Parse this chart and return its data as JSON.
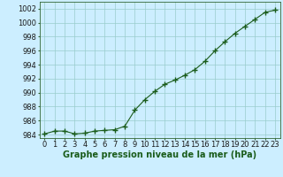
{
  "x": [
    0,
    1,
    2,
    3,
    4,
    5,
    6,
    7,
    8,
    9,
    10,
    11,
    12,
    13,
    14,
    15,
    16,
    17,
    18,
    19,
    20,
    21,
    22,
    23
  ],
  "y": [
    984.1,
    984.5,
    984.5,
    984.1,
    984.2,
    984.5,
    984.6,
    984.7,
    985.2,
    987.5,
    989.0,
    990.2,
    991.2,
    991.8,
    992.5,
    993.3,
    994.5,
    996.0,
    997.3,
    998.5,
    999.5,
    1000.5,
    1001.5,
    1001.8
  ],
  "line_color": "#1a5c1a",
  "marker": "+",
  "marker_size": 4,
  "bg_color": "#cceeff",
  "grid_color": "#99cccc",
  "ylim": [
    983.5,
    1003.0
  ],
  "yticks": [
    984,
    986,
    988,
    990,
    992,
    994,
    996,
    998,
    1000,
    1002
  ],
  "xlabel": "Graphe pression niveau de la mer (hPa)",
  "xlabel_fontsize": 7,
  "tick_fontsize": 6,
  "title": ""
}
